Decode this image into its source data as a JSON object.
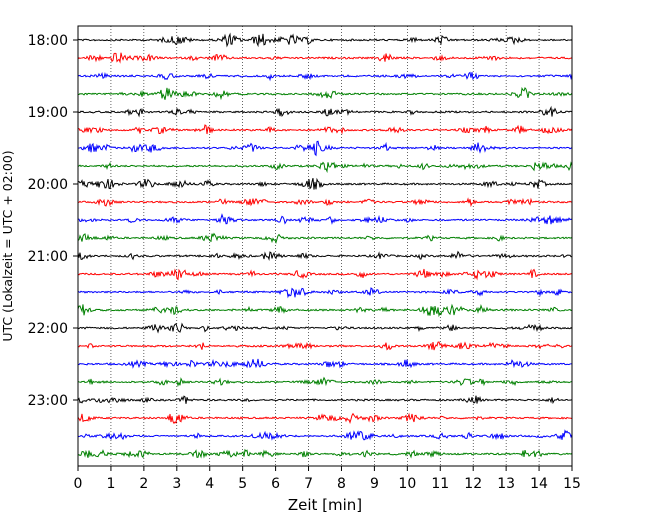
{
  "chart_data": {
    "type": "line",
    "title": "",
    "xlabel": "Zeit  [min]",
    "ylabel": "UTC (Lokalzeit = UTC + 02:00)",
    "xlim": [
      0,
      15
    ],
    "x_ticks": [
      "0",
      "1",
      "2",
      "3",
      "4",
      "5",
      "6",
      "7",
      "8",
      "9",
      "10",
      "11",
      "12",
      "13",
      "14",
      "15"
    ],
    "y_ticks": [
      "18:00",
      "19:00",
      "20:00",
      "21:00",
      "22:00",
      "23:00"
    ],
    "trace_interval_minutes": 15,
    "start_time": "18:00",
    "end_time": "23:45",
    "trace_count": 24,
    "trace_colors": [
      "#000000",
      "#ff0000",
      "#0000ff",
      "#008000"
    ],
    "grid": "vertical dotted lines at each minute",
    "legend": "none"
  }
}
